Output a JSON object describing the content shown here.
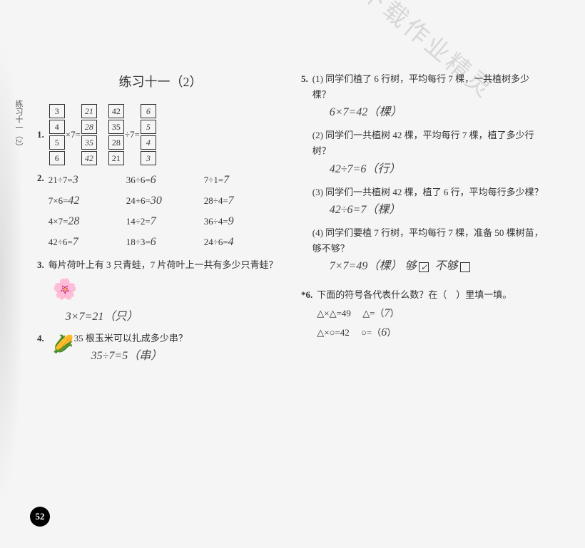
{
  "sideLabel": "练习十一（2）",
  "title": "练习十一（2）",
  "watermark": "更多答案请下载作业精灵",
  "pageNumber": "52",
  "q1": {
    "left": {
      "inputs": [
        "3",
        "4",
        "5",
        "6"
      ],
      "op": "×7=",
      "outputs": [
        "21",
        "28",
        "35",
        "42"
      ]
    },
    "right": {
      "inputs": [
        "42",
        "35",
        "28",
        "21"
      ],
      "op": "÷7=",
      "outputs": [
        "6",
        "5",
        "4",
        "3"
      ]
    }
  },
  "q2": [
    {
      "e": "21÷7=",
      "a": "3"
    },
    {
      "e": "36÷6=",
      "a": "6"
    },
    {
      "e": "7÷1=",
      "a": "7"
    },
    {
      "e": "7×6=",
      "a": "42"
    },
    {
      "e": "24+6=",
      "a": "30"
    },
    {
      "e": "28÷4=",
      "a": "7"
    },
    {
      "e": "4×7=",
      "a": "28"
    },
    {
      "e": "14÷2=",
      "a": "7"
    },
    {
      "e": "36÷4=",
      "a": "9"
    },
    {
      "e": "42÷6=",
      "a": "7"
    },
    {
      "e": "18÷3=",
      "a": "6"
    },
    {
      "e": "24÷6=",
      "a": "4"
    }
  ],
  "q3": {
    "text": "每片荷叶上有 3 只青蛙，7 片荷叶上一共有多少只青蛙？",
    "ans": "3×7=21（只）"
  },
  "q4": {
    "text": "35 根玉米可以扎成多少串？",
    "ans": "35÷7=5（串）"
  },
  "q5": {
    "parts": [
      {
        "lbl": "(1)",
        "text": "同学们植了 6 行树，平均每行 7 棵，一共植树多少棵？",
        "ans": "6×7=42（棵）"
      },
      {
        "lbl": "(2)",
        "text": "同学们一共植树 42 棵，平均每行 7 棵，植了多少行树？",
        "ans": "42÷7=6（行）"
      },
      {
        "lbl": "(3)",
        "text": "同学们一共植树 42 棵，植了 6 行，平均每行多少棵？",
        "ans": "42÷6=7（棵）"
      },
      {
        "lbl": "(4)",
        "text": "同学们要植 7 行树，平均每行 7 棵，准备 50 棵树苗，够不够？",
        "ans": "7×7=49（棵）"
      }
    ],
    "enough": "够",
    "notEnough": "不够",
    "check": "✓"
  },
  "q6": {
    "intro": "下面的符号各代表什么数？在（　）里填一填。",
    "l1a": "△×△=49",
    "l1b": "△=（",
    "a1": "7",
    "l1c": "）",
    "l2a": "△×○=42",
    "l2b": "○=（",
    "a2": "6",
    "l2c": "）"
  }
}
